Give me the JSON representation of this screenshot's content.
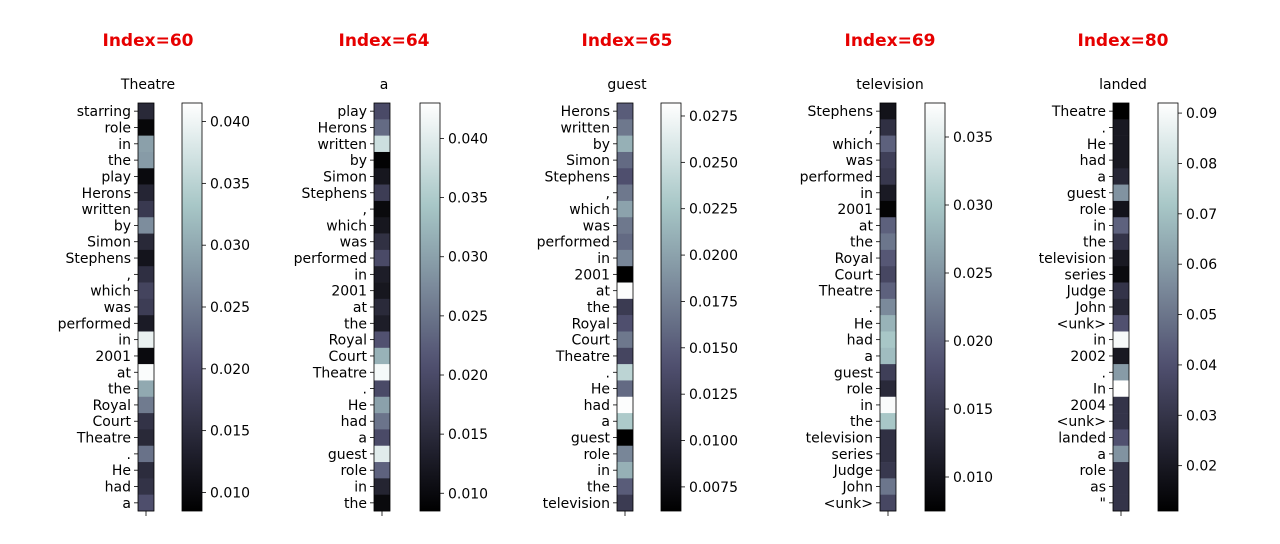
{
  "colormap": "bone",
  "index_label_color": "#e60000",
  "chart_data": [
    {
      "type": "heatmap",
      "index_label": "Index=60",
      "title": "Theatre",
      "tokens": [
        "starring",
        "role",
        "in",
        "the",
        "play",
        "Herons",
        "written",
        "by",
        "Simon",
        "Stephens",
        ",",
        "which",
        "was",
        "performed",
        "in",
        "2001",
        "at",
        "the",
        "Royal",
        "Court",
        "Theatre",
        ".",
        "He",
        "had",
        "a"
      ],
      "values": [
        0.0145,
        0.0095,
        0.029,
        0.0285,
        0.01,
        0.014,
        0.017,
        0.027,
        0.0145,
        0.0115,
        0.0155,
        0.0185,
        0.0175,
        0.0125,
        0.0395,
        0.01,
        0.041,
        0.03,
        0.025,
        0.016,
        0.0145,
        0.024,
        0.015,
        0.016,
        0.02
      ],
      "colorbar": {
        "min": 0.0085,
        "max": 0.0415,
        "ticks": [
          0.01,
          0.015,
          0.02,
          0.025,
          0.03,
          0.035,
          0.04
        ],
        "tick_labels": [
          "0.010",
          "0.015",
          "0.020",
          "0.025",
          "0.030",
          "0.035",
          "0.040"
        ]
      }
    },
    {
      "type": "heatmap",
      "index_label": "Index=64",
      "title": "a",
      "tokens": [
        "play",
        "Herons",
        "written",
        "by",
        "Simon",
        "Stephens",
        ",",
        "which",
        "was",
        "performed",
        "in",
        "2001",
        "at",
        "the",
        "Royal",
        "Court",
        "Theatre",
        ".",
        "He",
        "had",
        "a",
        "guest",
        "role",
        "in",
        "the"
      ],
      "values": [
        0.02,
        0.024,
        0.038,
        0.009,
        0.012,
        0.018,
        0.01,
        0.012,
        0.016,
        0.02,
        0.013,
        0.012,
        0.015,
        0.013,
        0.021,
        0.032,
        0.042,
        0.02,
        0.03,
        0.025,
        0.02,
        0.04,
        0.023,
        0.014,
        0.01
      ],
      "colorbar": {
        "min": 0.0085,
        "max": 0.043,
        "ticks": [
          0.01,
          0.015,
          0.02,
          0.025,
          0.03,
          0.035,
          0.04
        ],
        "tick_labels": [
          "0.010",
          "0.015",
          "0.020",
          "0.025",
          "0.030",
          "0.035",
          "0.040"
        ]
      }
    },
    {
      "type": "heatmap",
      "index_label": "Index=65",
      "title": "guest",
      "tokens": [
        "Herons",
        "written",
        "by",
        "Simon",
        "Stephens",
        ",",
        "which",
        "was",
        "performed",
        "in",
        "2001",
        "at",
        "the",
        "Royal",
        "Court",
        "Theatre",
        ".",
        "He",
        "had",
        "a",
        "guest",
        "role",
        "in",
        "the",
        "television"
      ],
      "values": [
        0.015,
        0.017,
        0.021,
        0.016,
        0.014,
        0.017,
        0.02,
        0.017,
        0.016,
        0.018,
        0.006,
        0.028,
        0.012,
        0.014,
        0.017,
        0.013,
        0.024,
        0.016,
        0.028,
        0.023,
        0.006,
        0.018,
        0.021,
        0.015,
        0.012
      ],
      "colorbar": {
        "min": 0.0062,
        "max": 0.0282,
        "ticks": [
          0.0075,
          0.01,
          0.0125,
          0.015,
          0.0175,
          0.02,
          0.0225,
          0.025,
          0.0275
        ],
        "tick_labels": [
          "0.0075",
          "0.0100",
          "0.0125",
          "0.0150",
          "0.0175",
          "0.0200",
          "0.0225",
          "0.0250",
          "0.0275"
        ]
      }
    },
    {
      "type": "heatmap",
      "index_label": "Index=69",
      "title": "television",
      "tokens": [
        "Stephens",
        ",",
        "which",
        "was",
        "performed",
        "in",
        "2001",
        "at",
        "the",
        "Royal",
        "Court",
        "Theatre",
        ".",
        "He",
        "had",
        "a",
        "guest",
        "role",
        "in",
        "the",
        "television",
        "series",
        "Judge",
        "John",
        "<unk>"
      ],
      "values": [
        0.01,
        0.014,
        0.02,
        0.016,
        0.015,
        0.011,
        0.008,
        0.02,
        0.022,
        0.019,
        0.017,
        0.02,
        0.024,
        0.028,
        0.03,
        0.029,
        0.016,
        0.013,
        0.037,
        0.03,
        0.014,
        0.014,
        0.015,
        0.022,
        0.017
      ],
      "colorbar": {
        "min": 0.0075,
        "max": 0.0375,
        "ticks": [
          0.01,
          0.015,
          0.02,
          0.025,
          0.03,
          0.035
        ],
        "tick_labels": [
          "0.010",
          "0.015",
          "0.020",
          "0.025",
          "0.030",
          "0.035"
        ]
      }
    },
    {
      "type": "heatmap",
      "index_label": "Index=80",
      "title": "landed",
      "tokens": [
        "Theatre",
        ".",
        "He",
        "had",
        "a",
        "guest",
        "role",
        "in",
        "the",
        "television",
        "series",
        "Judge",
        "John",
        "<unk>",
        "in",
        "2002",
        ".",
        "In",
        "2004",
        "<unk>",
        "landed",
        "a",
        "role",
        "as",
        "\""
      ],
      "values": [
        0.01,
        0.02,
        0.02,
        0.02,
        0.025,
        0.058,
        0.018,
        0.045,
        0.03,
        0.02,
        0.015,
        0.03,
        0.025,
        0.04,
        0.09,
        0.02,
        0.06,
        0.092,
        0.03,
        0.03,
        0.04,
        0.058,
        0.03,
        0.03,
        0.03
      ],
      "colorbar": {
        "min": 0.011,
        "max": 0.092,
        "ticks": [
          0.02,
          0.03,
          0.04,
          0.05,
          0.06,
          0.07,
          0.08,
          0.09
        ],
        "tick_labels": [
          "0.02",
          "0.03",
          "0.04",
          "0.05",
          "0.06",
          "0.07",
          "0.08",
          "0.09"
        ]
      }
    }
  ]
}
